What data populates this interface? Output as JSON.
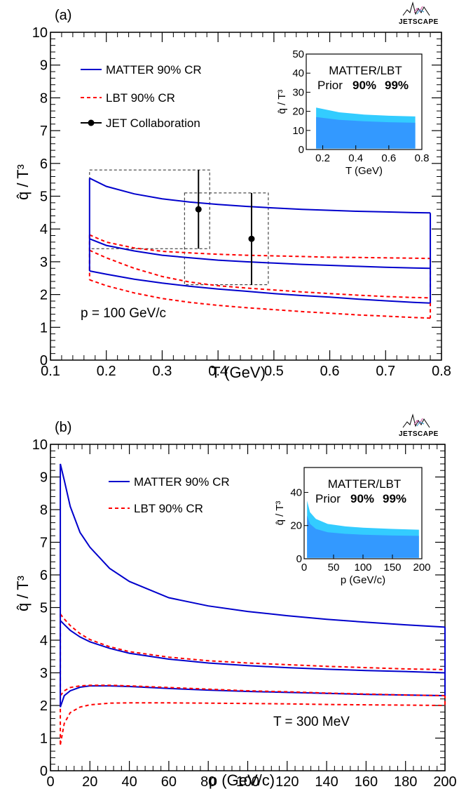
{
  "logo_text": "JETSCAPE",
  "chart_data": [
    {
      "type": "line",
      "panel_label": "(a)",
      "xlabel": "T (GeV)",
      "ylabel": "q̂ / T³",
      "xlim": [
        0.1,
        0.8
      ],
      "ylim": [
        0,
        10
      ],
      "xticks": [
        0.1,
        0.2,
        0.3,
        0.4,
        0.5,
        0.6,
        0.7,
        0.8
      ],
      "xtick_labels": [
        "0.1",
        "0.2",
        "0.3",
        "0.4",
        "0.5",
        "0.6",
        "0.7",
        "0.8"
      ],
      "yticks": [
        0,
        1,
        2,
        3,
        4,
        5,
        6,
        7,
        8,
        9,
        10
      ],
      "ytick_labels": [
        "0",
        "1",
        "2",
        "3",
        "4",
        "5",
        "6",
        "7",
        "8",
        "9",
        "10"
      ],
      "annotation": "p = 100 GeV/c",
      "legend": [
        "MATTER 90% CR",
        "LBT 90% CR",
        "JET Collaboration"
      ],
      "x": [
        0.17,
        0.2,
        0.25,
        0.3,
        0.35,
        0.4,
        0.45,
        0.5,
        0.55,
        0.6,
        0.65,
        0.7,
        0.75,
        0.78
      ],
      "series": [
        {
          "name": "MATTER 90% CR",
          "role": "upper",
          "style": "solid",
          "color": "#0000cc",
          "values": [
            5.55,
            5.3,
            5.07,
            4.92,
            4.82,
            4.75,
            4.69,
            4.64,
            4.6,
            4.57,
            4.54,
            4.52,
            4.5,
            4.49
          ]
        },
        {
          "name": "MATTER 90% CR",
          "role": "median",
          "style": "solid",
          "color": "#0000cc",
          "values": [
            3.7,
            3.5,
            3.33,
            3.2,
            3.12,
            3.05,
            3.0,
            2.96,
            2.92,
            2.89,
            2.86,
            2.83,
            2.81,
            2.8
          ]
        },
        {
          "name": "MATTER 90% CR",
          "role": "lower",
          "style": "solid",
          "color": "#0000cc",
          "values": [
            2.72,
            2.62,
            2.47,
            2.35,
            2.25,
            2.17,
            2.1,
            2.03,
            1.97,
            1.92,
            1.86,
            1.81,
            1.76,
            1.74
          ]
        },
        {
          "name": "LBT 90% CR",
          "role": "upper",
          "style": "dashed",
          "color": "#ff0000",
          "values": [
            3.82,
            3.6,
            3.42,
            3.32,
            3.27,
            3.23,
            3.2,
            3.18,
            3.16,
            3.14,
            3.13,
            3.12,
            3.11,
            3.1
          ]
        },
        {
          "name": "LBT 90% CR",
          "role": "median",
          "style": "dashed",
          "color": "#ff0000",
          "values": [
            3.35,
            3.12,
            2.8,
            2.55,
            2.38,
            2.27,
            2.2,
            2.14,
            2.08,
            2.03,
            1.98,
            1.94,
            1.91,
            1.9
          ]
        },
        {
          "name": "LBT 90% CR",
          "role": "lower",
          "style": "dashed",
          "color": "#ff0000",
          "values": [
            2.45,
            2.27,
            2.05,
            1.88,
            1.76,
            1.67,
            1.6,
            1.54,
            1.48,
            1.43,
            1.38,
            1.34,
            1.3,
            1.28
          ]
        }
      ],
      "points": [
        {
          "name": "JET Collaboration",
          "x": 0.365,
          "y": 4.6,
          "yerr": [
            3.4,
            5.8
          ],
          "box": [
            0.17,
            0.385,
            3.4,
            5.8
          ]
        },
        {
          "name": "JET Collaboration",
          "x": 0.46,
          "y": 3.7,
          "yerr": [
            2.3,
            5.1
          ],
          "box": [
            0.34,
            0.49,
            2.3,
            5.1
          ]
        }
      ],
      "inset": {
        "title": "MATTER/LBT",
        "prior_label": "Prior",
        "band_labels": [
          "90%",
          "99%"
        ],
        "band_colors": [
          "#3399ff",
          "#33ccff"
        ],
        "xlabel": "T (GeV)",
        "ylabel": "q̂ / T³",
        "xlim": [
          0.1,
          0.8
        ],
        "ylim": [
          0,
          50
        ],
        "xticks": [
          0.2,
          0.4,
          0.6,
          0.8
        ],
        "xtick_labels": [
          "0.2",
          "0.4",
          "0.6",
          "0.8"
        ],
        "yticks": [
          0,
          10,
          20,
          30,
          40,
          50
        ],
        "ytick_labels": [
          "0",
          "10",
          "20",
          "30",
          "40",
          "50"
        ],
        "x": [
          0.16,
          0.3,
          0.45,
          0.6,
          0.76
        ],
        "band99_upper": [
          22,
          19.5,
          18.3,
          17.7,
          17.3
        ],
        "band90_upper": [
          17,
          15.5,
          14.8,
          14.3,
          14
        ],
        "band_lower": [
          0.5,
          0.5,
          0.5,
          0.5,
          0.5
        ]
      }
    },
    {
      "type": "line",
      "panel_label": "(b)",
      "xlabel": "p (GeV/c)",
      "ylabel": "q̂ / T³",
      "xlim": [
        0,
        200
      ],
      "ylim": [
        0,
        10
      ],
      "xticks": [
        0,
        20,
        40,
        60,
        80,
        100,
        120,
        140,
        160,
        180,
        200
      ],
      "xtick_labels": [
        "0",
        "20",
        "40",
        "60",
        "80",
        "100",
        "120",
        "140",
        "160",
        "180",
        "200"
      ],
      "yticks": [
        0,
        1,
        2,
        3,
        4,
        5,
        6,
        7,
        8,
        9,
        10
      ],
      "ytick_labels": [
        "0",
        "1",
        "2",
        "3",
        "4",
        "5",
        "6",
        "7",
        "8",
        "9",
        "10"
      ],
      "annotation": "T = 300 MeV",
      "legend": [
        "MATTER 90% CR",
        "LBT 90% CR"
      ],
      "x": [
        5,
        7,
        10,
        15,
        20,
        30,
        40,
        60,
        80,
        100,
        120,
        140,
        160,
        180,
        200
      ],
      "series": [
        {
          "name": "MATTER 90% CR",
          "role": "upper",
          "style": "solid",
          "color": "#0000cc",
          "values": [
            9.4,
            8.9,
            8.1,
            7.3,
            6.85,
            6.2,
            5.8,
            5.3,
            5.05,
            4.88,
            4.75,
            4.64,
            4.55,
            4.47,
            4.4
          ]
        },
        {
          "name": "MATTER 90% CR",
          "role": "median",
          "style": "solid",
          "color": "#0000cc",
          "values": [
            4.6,
            4.48,
            4.3,
            4.1,
            3.95,
            3.75,
            3.6,
            3.42,
            3.3,
            3.22,
            3.16,
            3.11,
            3.07,
            3.04,
            3.0
          ]
        },
        {
          "name": "MATTER 90% CR",
          "role": "lower",
          "style": "solid",
          "color": "#0000cc",
          "values": [
            1.95,
            2.3,
            2.45,
            2.56,
            2.6,
            2.6,
            2.58,
            2.52,
            2.47,
            2.43,
            2.4,
            2.37,
            2.34,
            2.32,
            2.3
          ]
        },
        {
          "name": "LBT 90% CR",
          "role": "upper",
          "style": "dashed",
          "color": "#ff0000",
          "values": [
            4.8,
            4.65,
            4.45,
            4.2,
            4.02,
            3.8,
            3.65,
            3.48,
            3.37,
            3.3,
            3.25,
            3.2,
            3.16,
            3.12,
            3.1
          ]
        },
        {
          "name": "LBT 90% CR",
          "role": "median",
          "style": "dashed",
          "color": "#ff0000",
          "values": [
            2.3,
            2.45,
            2.55,
            2.6,
            2.62,
            2.62,
            2.6,
            2.55,
            2.5,
            2.45,
            2.42,
            2.38,
            2.35,
            2.32,
            2.3
          ]
        },
        {
          "name": "LBT 90% CR",
          "role": "lower",
          "style": "dashed",
          "color": "#ff0000",
          "values": [
            0.8,
            1.45,
            1.78,
            1.95,
            2.02,
            2.07,
            2.08,
            2.08,
            2.07,
            2.06,
            2.05,
            2.03,
            2.02,
            2.01,
            2.0
          ]
        }
      ],
      "inset": {
        "title": "MATTER/LBT",
        "prior_label": "Prior",
        "band_labels": [
          "90%",
          "99%"
        ],
        "band_colors": [
          "#3399ff",
          "#33ccff"
        ],
        "xlabel": "p (GeV/c)",
        "ylabel": "q̂ / T³",
        "xlim": [
          0,
          200
        ],
        "ylim": [
          0,
          55
        ],
        "xticks": [
          0,
          50,
          100,
          150,
          200
        ],
        "xtick_labels": [
          "0",
          "50",
          "100",
          "150",
          "200"
        ],
        "yticks": [
          0,
          20,
          40
        ],
        "ytick_labels": [
          "0",
          "20",
          "40"
        ],
        "x": [
          5,
          10,
          20,
          40,
          70,
          100,
          150,
          195
        ],
        "band99_upper": [
          35,
          28,
          24,
          21,
          19.5,
          18.7,
          18,
          17.5
        ],
        "band90_upper": [
          26,
          21,
          18,
          16,
          15,
          14.5,
          14,
          13.8
        ],
        "band_lower": [
          0.5,
          0.5,
          0.5,
          0.5,
          0.5,
          0.5,
          0.5,
          0.5
        ]
      }
    }
  ]
}
